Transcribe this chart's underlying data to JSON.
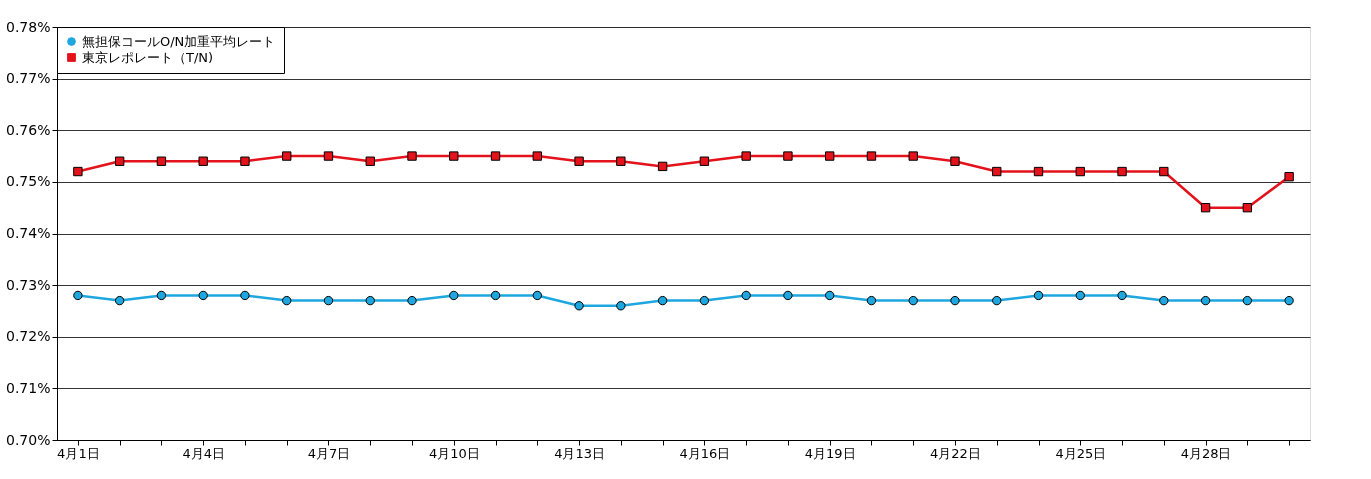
{
  "chart_data": {
    "type": "line",
    "categories": [
      "4月1日",
      null,
      null,
      "4月4日",
      null,
      null,
      "4月7日",
      null,
      null,
      "4月10日",
      null,
      null,
      "4月13日",
      null,
      null,
      "4月16日",
      null,
      null,
      "4月19日",
      null,
      null,
      "4月22日",
      null,
      null,
      "4月25日",
      null,
      null,
      "4月28日",
      null,
      null
    ],
    "series": [
      {
        "name": "無担保コールO/N加重平均レート",
        "color": "#1ea7df",
        "marker": "circle",
        "values": [
          0.728,
          0.727,
          0.728,
          0.728,
          0.728,
          0.727,
          0.727,
          0.727,
          0.727,
          0.728,
          0.728,
          0.728,
          0.726,
          0.726,
          0.727,
          0.727,
          0.728,
          0.728,
          0.728,
          0.727,
          0.727,
          0.727,
          0.727,
          0.728,
          0.728,
          0.728,
          0.727,
          0.727,
          0.727,
          0.727
        ]
      },
      {
        "name": "東京レポレート（T/N)",
        "color": "#e3121b",
        "marker": "square",
        "values": [
          0.752,
          0.754,
          0.754,
          0.754,
          0.754,
          0.755,
          0.755,
          0.754,
          0.755,
          0.755,
          0.755,
          0.755,
          0.754,
          0.754,
          0.753,
          0.754,
          0.755,
          0.755,
          0.755,
          0.755,
          0.755,
          0.754,
          0.752,
          0.752,
          0.752,
          0.752,
          0.752,
          0.745,
          0.745,
          0.751
        ]
      }
    ],
    "ylim": [
      0.7,
      0.78
    ],
    "yticks": [
      {
        "value": 0.7,
        "label": "0.70%"
      },
      {
        "value": 0.71,
        "label": "0.71%"
      },
      {
        "value": 0.72,
        "label": "0.72%"
      },
      {
        "value": 0.73,
        "label": "0.73%"
      },
      {
        "value": 0.74,
        "label": "0.74%"
      },
      {
        "value": 0.75,
        "label": "0.75%"
      },
      {
        "value": 0.76,
        "label": "0.76%"
      },
      {
        "value": 0.77,
        "label": "0.77%"
      },
      {
        "value": 0.78,
        "label": "0.78%"
      }
    ],
    "grid": "y",
    "legend": "top left"
  }
}
